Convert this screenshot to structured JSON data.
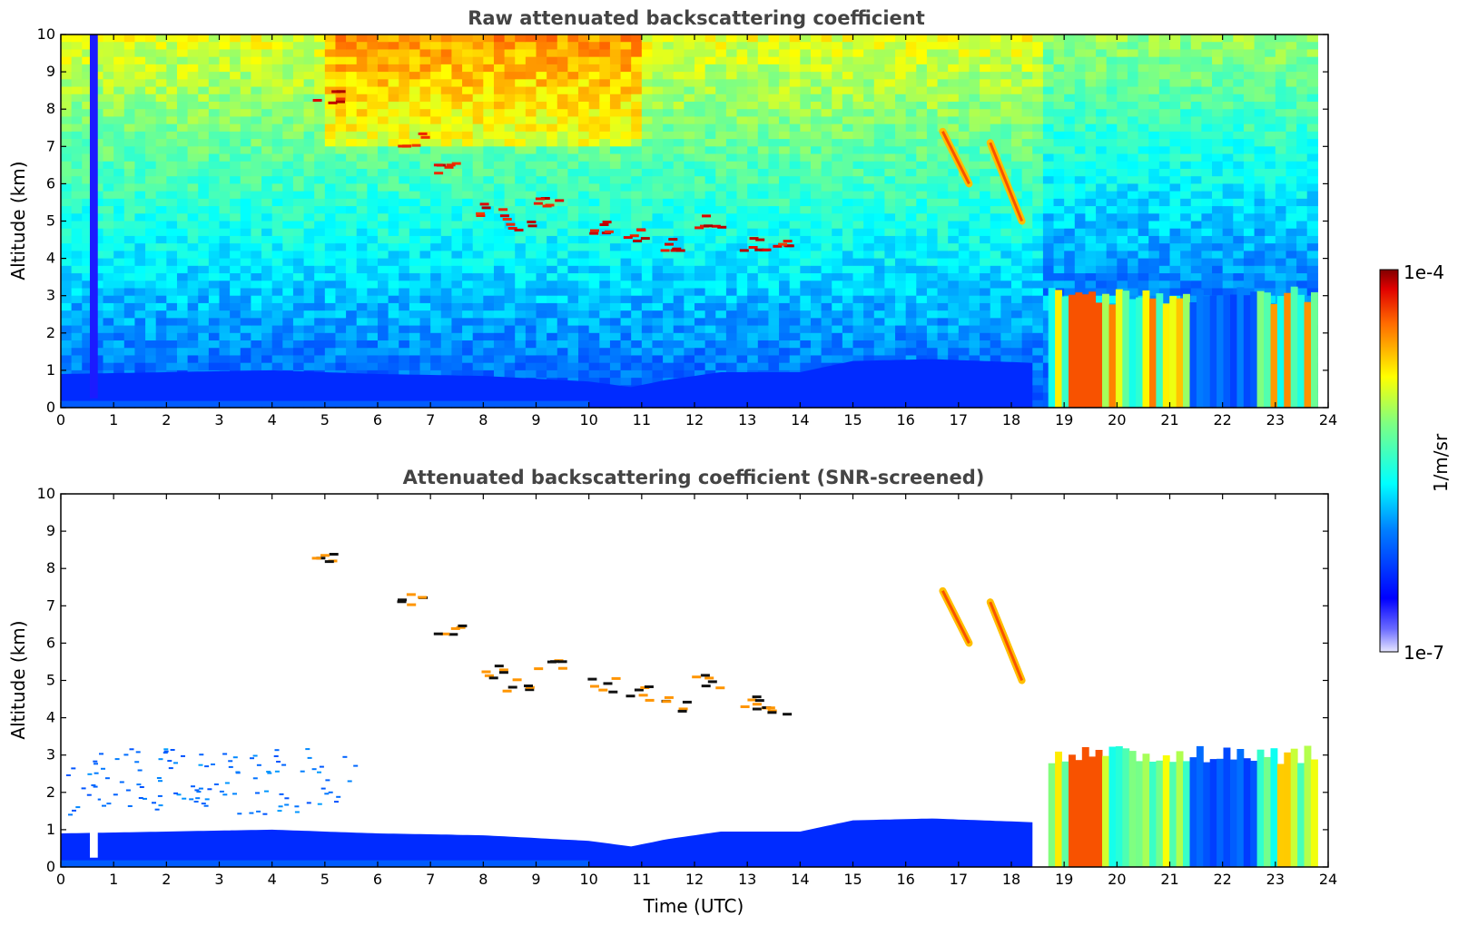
{
  "chart_data": [
    {
      "type": "heatmap",
      "title": "Raw attenuated backscattering coefficient",
      "xlabel": "",
      "ylabel": "Altitude (km)",
      "xlim": [
        0,
        24
      ],
      "ylim": [
        0,
        10
      ],
      "x_ticks": [
        0,
        1,
        2,
        3,
        4,
        5,
        6,
        7,
        8,
        9,
        10,
        11,
        12,
        13,
        14,
        15,
        16,
        17,
        18,
        19,
        20,
        21,
        22,
        23,
        24
      ],
      "y_ticks": [
        0,
        1,
        2,
        3,
        4,
        5,
        6,
        7,
        8,
        9,
        10
      ],
      "screened": false,
      "features": [
        {
          "desc": "boundary layer",
          "x_start": 0,
          "x_end": 18.4,
          "top_km": [
            0.9,
            0.95,
            1.0,
            0.9,
            0.85,
            0.7,
            0.55,
            0.75,
            0.95,
            0.95,
            1.25,
            1.3,
            1.2
          ],
          "top_x": [
            0,
            2,
            4,
            6,
            8,
            10,
            10.8,
            11.5,
            12.5,
            14,
            15,
            16.5,
            18.4
          ]
        },
        {
          "desc": "mid-level cloud streaks",
          "points": [
            [
              5.0,
              8.4
            ],
            [
              6.6,
              7.2
            ],
            [
              7.3,
              6.4
            ],
            [
              8.1,
              5.3
            ],
            [
              8.6,
              4.9
            ],
            [
              9.2,
              5.5
            ],
            [
              10.2,
              4.9
            ],
            [
              10.9,
              4.7
            ],
            [
              11.6,
              4.4
            ],
            [
              12.2,
              5.0
            ],
            [
              13.0,
              4.4
            ],
            [
              13.5,
              4.3
            ]
          ]
        },
        {
          "desc": "fall streaks",
          "points": [
            [
              16.7,
              7.4
            ],
            [
              17.2,
              6.0
            ],
            [
              17.6,
              7.1
            ],
            [
              18.2,
              5.0
            ]
          ]
        },
        {
          "desc": "low cloud / precipitation",
          "x_start": 18.7,
          "x_end": 23.8,
          "top_km": 3.0
        }
      ]
    },
    {
      "type": "heatmap",
      "title": "Attenuated backscattering coefficient (SNR-screened)",
      "xlabel": "Time (UTC)",
      "ylabel": "Altitude (km)",
      "xlim": [
        0,
        24
      ],
      "ylim": [
        0,
        10
      ],
      "x_ticks": [
        0,
        1,
        2,
        3,
        4,
        5,
        6,
        7,
        8,
        9,
        10,
        11,
        12,
        13,
        14,
        15,
        16,
        17,
        18,
        19,
        20,
        21,
        22,
        23,
        24
      ],
      "y_ticks": [
        0,
        1,
        2,
        3,
        4,
        5,
        6,
        7,
        8,
        9,
        10
      ],
      "screened": true
    }
  ],
  "colorbar": {
    "label": "1/m/sr",
    "max_label": "1e-4",
    "min_label": "1e-7",
    "colormap": "jet",
    "min_value": 1e-07,
    "max_value": 0.0001
  },
  "colors": {
    "title": "#444444",
    "background": "#ffffff"
  }
}
